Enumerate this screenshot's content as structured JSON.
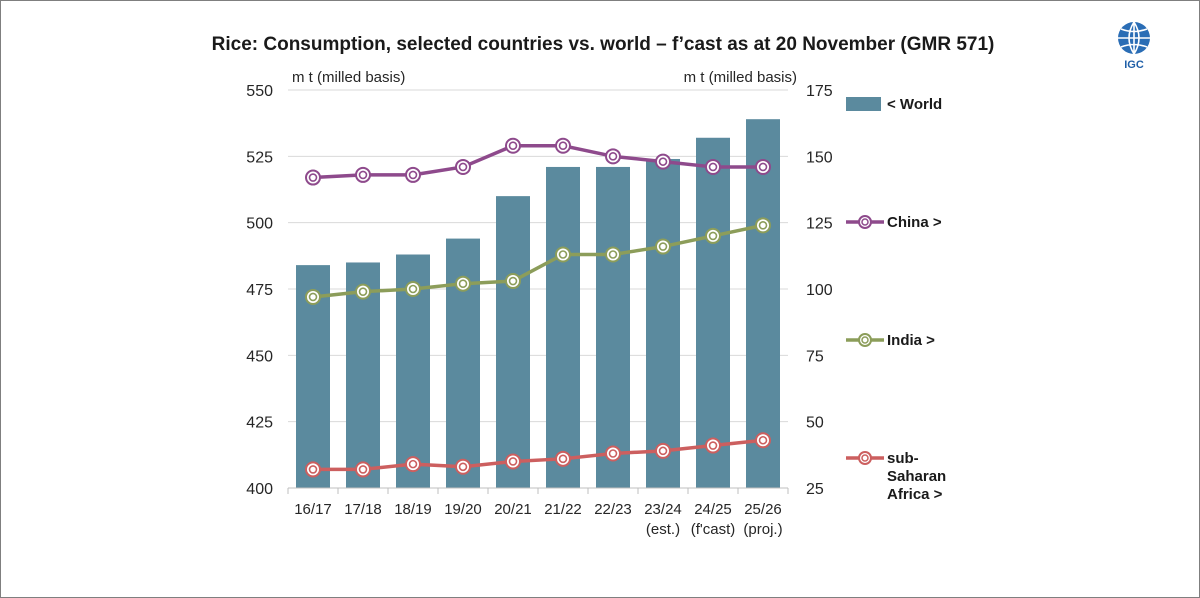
{
  "chart_data": {
    "type": "bar",
    "title": "Rice: Consumption, selected countries vs. world – f’cast as at 20 November (GMR 571)",
    "ylabel_left": "m t (milled basis)",
    "ylabel_right": "m t (milled basis)",
    "ylim_left": [
      400,
      550
    ],
    "ylim_right": [
      25,
      175
    ],
    "yticks_left": [
      400,
      425,
      450,
      475,
      500,
      525,
      550
    ],
    "yticks_right": [
      25,
      50,
      75,
      100,
      125,
      150,
      175
    ],
    "categories": [
      [
        "16/17"
      ],
      [
        "17/18"
      ],
      [
        "18/19"
      ],
      [
        "19/20"
      ],
      [
        "20/21"
      ],
      [
        "21/22"
      ],
      [
        "22/23"
      ],
      [
        "23/24",
        "(est.)"
      ],
      [
        "24/25",
        "(f'cast)"
      ],
      [
        "25/26",
        "(proj.)"
      ]
    ],
    "grid": true,
    "legend_position": "right",
    "series": [
      {
        "name": "< World",
        "type": "bar",
        "axis": "left",
        "color": "#5b8a9e",
        "values": [
          484,
          485,
          488,
          494,
          510,
          521,
          521,
          524,
          532,
          539
        ]
      },
      {
        "name": "China >",
        "type": "line",
        "axis": "right",
        "color": "#8e4a8c",
        "values": [
          142,
          143,
          143,
          146,
          154,
          154,
          150,
          148,
          146,
          146
        ]
      },
      {
        "name": "India >",
        "type": "line",
        "axis": "right",
        "color": "#8c9d5a",
        "values": [
          97,
          99,
          100,
          102,
          103,
          113,
          113,
          116,
          120,
          124
        ]
      },
      {
        "name": "sub-Saharan Africa >",
        "type": "line",
        "axis": "right",
        "color": "#cc5f5f",
        "legend_lines": [
          "sub-",
          "Saharan",
          "Africa >"
        ],
        "values": [
          32,
          32,
          34,
          33,
          35,
          36,
          38,
          39,
          41,
          43
        ]
      }
    ]
  },
  "logo": {
    "text": "IGC"
  }
}
